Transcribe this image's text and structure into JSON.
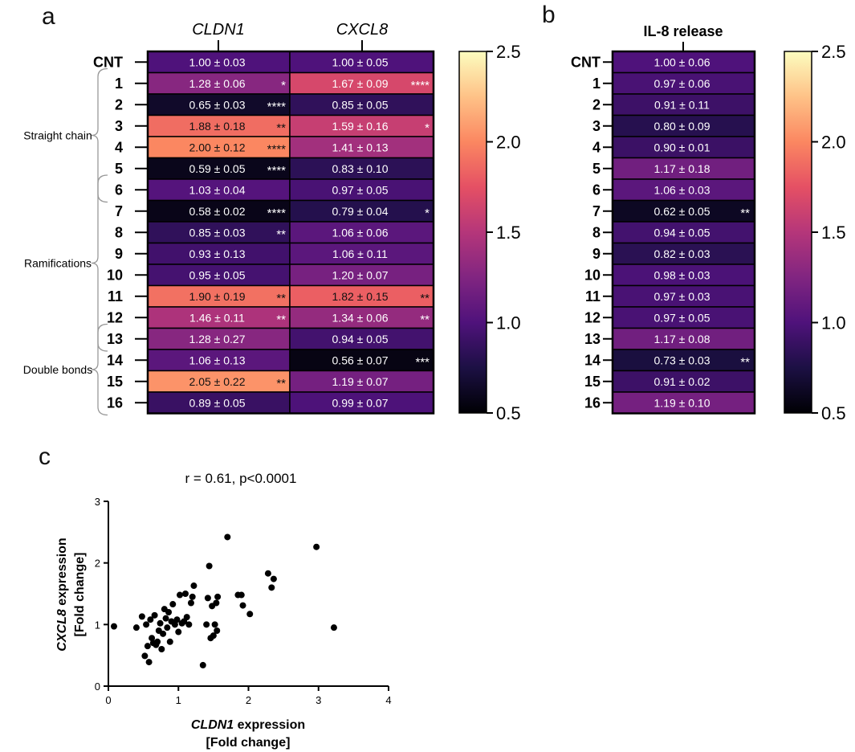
{
  "panels": {
    "a": "a",
    "b": "b",
    "c": "c"
  },
  "heatmap_a": {
    "columns": [
      "CLDN1",
      "CXCL8"
    ],
    "rows": [
      "CNT",
      "1",
      "2",
      "3",
      "4",
      "5",
      "6",
      "7",
      "8",
      "9",
      "10",
      "11",
      "12",
      "13",
      "14",
      "15",
      "16"
    ],
    "values": [
      [
        1.0,
        1.0
      ],
      [
        1.28,
        1.67
      ],
      [
        0.65,
        0.85
      ],
      [
        1.88,
        1.59
      ],
      [
        2.0,
        1.41
      ],
      [
        0.59,
        0.83
      ],
      [
        1.03,
        0.97
      ],
      [
        0.58,
        0.79
      ],
      [
        0.85,
        1.06
      ],
      [
        0.93,
        1.06
      ],
      [
        0.95,
        1.2
      ],
      [
        1.9,
        1.82
      ],
      [
        1.46,
        1.34
      ],
      [
        1.28,
        0.94
      ],
      [
        1.06,
        0.56
      ],
      [
        2.05,
        1.19
      ],
      [
        0.89,
        0.99
      ]
    ],
    "cells": [
      [
        "1.00 ± 0.03",
        "1.00 ± 0.05"
      ],
      [
        "1.28 ± 0.06",
        "1.67 ± 0.09"
      ],
      [
        "0.65 ± 0.03",
        "0.85 ± 0.05"
      ],
      [
        "1.88 ± 0.18",
        "1.59 ± 0.16"
      ],
      [
        "2.00 ± 0.12",
        "1.41 ± 0.13"
      ],
      [
        "0.59 ± 0.05",
        "0.83 ± 0.10"
      ],
      [
        "1.03 ± 0.04",
        "0.97 ± 0.05"
      ],
      [
        "0.58 ± 0.02",
        "0.79 ± 0.04"
      ],
      [
        "0.85 ± 0.03",
        "1.06 ± 0.06"
      ],
      [
        "0.93 ± 0.13",
        "1.06 ± 0.11"
      ],
      [
        "0.95 ± 0.05",
        "1.20 ± 0.07"
      ],
      [
        "1.90 ± 0.19",
        "1.82 ± 0.15"
      ],
      [
        "1.46 ± 0.11",
        "1.34 ± 0.06"
      ],
      [
        "1.28 ± 0.27",
        "0.94 ± 0.05"
      ],
      [
        "1.06 ± 0.13",
        "0.56 ± 0.07"
      ],
      [
        "2.05 ± 0.22",
        "1.19 ± 0.07"
      ],
      [
        "0.89 ± 0.05",
        "0.99 ± 0.07"
      ]
    ],
    "significance": [
      [
        "",
        ""
      ],
      [
        "*",
        "****"
      ],
      [
        "****",
        ""
      ],
      [
        "**",
        "*"
      ],
      [
        "****",
        ""
      ],
      [
        "****",
        ""
      ],
      [
        "",
        ""
      ],
      [
        "****",
        "*"
      ],
      [
        "**",
        ""
      ],
      [
        "",
        ""
      ],
      [
        "",
        ""
      ],
      [
        "**",
        "**"
      ],
      [
        "**",
        "**"
      ],
      [
        "",
        ""
      ],
      [
        "",
        "***"
      ],
      [
        "**",
        ""
      ],
      [
        "",
        ""
      ]
    ],
    "groups": [
      {
        "label": "Straight chain",
        "from_row": 1,
        "to_row": 6
      },
      {
        "label": "Ramifications",
        "from_row": 6,
        "to_row": 13
      },
      {
        "label": "Double bonds",
        "from_row": 13,
        "to_row": 16
      }
    ]
  },
  "heatmap_b": {
    "title": "IL-8 release",
    "rows": [
      "CNT",
      "1",
      "2",
      "3",
      "4",
      "5",
      "6",
      "7",
      "8",
      "9",
      "10",
      "11",
      "12",
      "13",
      "14",
      "15",
      "16"
    ],
    "values": [
      1.0,
      0.97,
      0.91,
      0.8,
      0.9,
      1.17,
      1.06,
      0.62,
      0.94,
      0.82,
      0.98,
      0.97,
      0.97,
      1.17,
      0.73,
      0.91,
      1.19
    ],
    "cells": [
      "1.00 ± 0.06",
      "0.97 ± 0.06",
      "0.91 ± 0.11",
      "0.80 ± 0.09",
      "0.90 ± 0.01",
      "1.17 ± 0.18",
      "1.06 ± 0.03",
      "0.62 ± 0.05",
      "0.94 ± 0.05",
      "0.82 ± 0.03",
      "0.98 ± 0.03",
      "0.97 ± 0.03",
      "0.97 ± 0.05",
      "1.17 ± 0.08",
      "0.73 ± 0.03",
      "0.91 ± 0.02",
      "1.19 ± 0.10"
    ],
    "significance": [
      "",
      "",
      "",
      "",
      "",
      "",
      "",
      "**",
      "",
      "",
      "",
      "",
      "",
      "",
      "**",
      "",
      ""
    ]
  },
  "colorbar": {
    "min": 0.5,
    "max": 2.5,
    "ticks": [
      "2.5",
      "2.0",
      "1.5",
      "1.0",
      "0.5"
    ],
    "tick_values": [
      2.5,
      2.0,
      1.5,
      1.0,
      0.5
    ],
    "colormap": "magma",
    "stops": [
      "#000004",
      "#1c1044",
      "#4f127b",
      "#812581",
      "#b5367a",
      "#e55064",
      "#fb8761",
      "#fec287",
      "#fcfdbf"
    ]
  },
  "chart_data": {
    "type": "scatter",
    "title": "r = 0.61, p<0.0001",
    "xlabel_italic": "CLDN1",
    "xlabel_rest": " expression",
    "xlabel_line2": "[Fold change]",
    "ylabel_italic": "CXCL8",
    "ylabel_rest": " expression",
    "ylabel_line2": "[Fold change]",
    "xlim": [
      0,
      4
    ],
    "ylim": [
      0,
      3
    ],
    "xticks": [
      "0",
      "1",
      "2",
      "3",
      "4"
    ],
    "yticks": [
      "0",
      "1",
      "2",
      "3"
    ],
    "points": [
      [
        0.08,
        0.97
      ],
      [
        0.4,
        0.95
      ],
      [
        0.48,
        1.13
      ],
      [
        0.52,
        0.49
      ],
      [
        0.54,
        1.0
      ],
      [
        0.56,
        0.65
      ],
      [
        0.58,
        0.39
      ],
      [
        0.6,
        1.08
      ],
      [
        0.62,
        0.78
      ],
      [
        0.64,
        0.7
      ],
      [
        0.66,
        1.15
      ],
      [
        0.68,
        0.67
      ],
      [
        0.7,
        0.72
      ],
      [
        0.72,
        0.9
      ],
      [
        0.74,
        1.02
      ],
      [
        0.76,
        0.6
      ],
      [
        0.78,
        0.85
      ],
      [
        0.8,
        1.25
      ],
      [
        0.82,
        1.1
      ],
      [
        0.84,
        0.95
      ],
      [
        0.86,
        1.2
      ],
      [
        0.88,
        0.72
      ],
      [
        0.9,
        1.05
      ],
      [
        0.92,
        1.33
      ],
      [
        0.95,
        1.0
      ],
      [
        0.98,
        1.08
      ],
      [
        1.0,
        0.88
      ],
      [
        1.02,
        1.48
      ],
      [
        1.05,
        1.02
      ],
      [
        1.08,
        1.05
      ],
      [
        1.1,
        1.5
      ],
      [
        1.12,
        1.12
      ],
      [
        1.15,
        1.0
      ],
      [
        1.18,
        1.35
      ],
      [
        1.2,
        1.45
      ],
      [
        1.22,
        1.63
      ],
      [
        1.35,
        0.34
      ],
      [
        1.4,
        1.0
      ],
      [
        1.42,
        1.43
      ],
      [
        1.44,
        1.95
      ],
      [
        1.46,
        0.78
      ],
      [
        1.48,
        1.3
      ],
      [
        1.5,
        0.82
      ],
      [
        1.52,
        1.0
      ],
      [
        1.54,
        1.35
      ],
      [
        1.55,
        0.9
      ],
      [
        1.56,
        1.45
      ],
      [
        1.7,
        2.42
      ],
      [
        1.85,
        1.48
      ],
      [
        1.9,
        1.48
      ],
      [
        1.92,
        1.31
      ],
      [
        2.02,
        1.17
      ],
      [
        2.28,
        1.83
      ],
      [
        2.33,
        1.6
      ],
      [
        2.36,
        1.74
      ],
      [
        2.97,
        2.26
      ],
      [
        3.22,
        0.95
      ]
    ]
  }
}
